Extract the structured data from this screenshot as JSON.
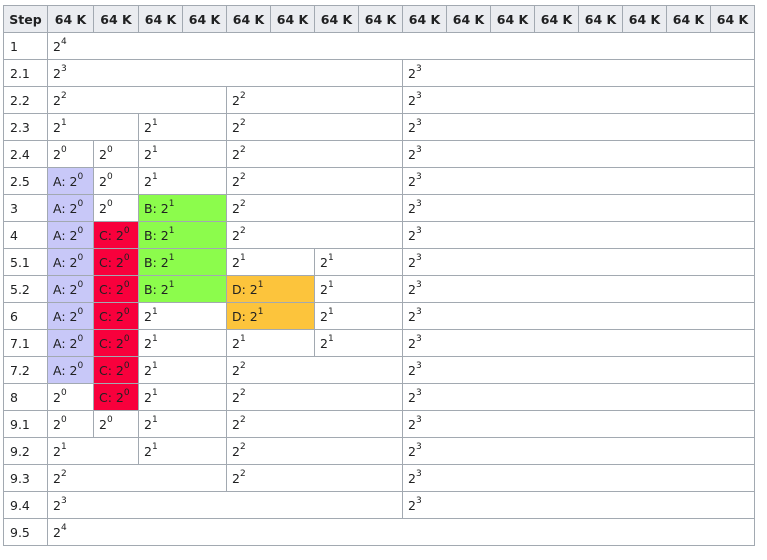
{
  "header": {
    "step": "Step",
    "block": "64 K",
    "count": 16
  },
  "colors": {
    "A": "#c8c8f8",
    "B": "#8cfc4c",
    "C": "#f8003c",
    "D": "#fcc43c"
  },
  "rows": [
    {
      "step": "1",
      "cells": [
        {
          "span": 16,
          "exp": "4"
        }
      ]
    },
    {
      "step": "2.1",
      "cells": [
        {
          "span": 8,
          "exp": "3"
        },
        {
          "span": 8,
          "exp": "3"
        }
      ]
    },
    {
      "step": "2.2",
      "cells": [
        {
          "span": 4,
          "exp": "2"
        },
        {
          "span": 4,
          "exp": "2"
        },
        {
          "span": 8,
          "exp": "3"
        }
      ]
    },
    {
      "step": "2.3",
      "cells": [
        {
          "span": 2,
          "exp": "1"
        },
        {
          "span": 2,
          "exp": "1"
        },
        {
          "span": 4,
          "exp": "2"
        },
        {
          "span": 8,
          "exp": "3"
        }
      ]
    },
    {
      "step": "2.4",
      "cells": [
        {
          "span": 1,
          "exp": "0"
        },
        {
          "span": 1,
          "exp": "0"
        },
        {
          "span": 2,
          "exp": "1"
        },
        {
          "span": 4,
          "exp": "2"
        },
        {
          "span": 8,
          "exp": "3"
        }
      ]
    },
    {
      "step": "2.5",
      "cells": [
        {
          "span": 1,
          "exp": "0",
          "label": "A"
        },
        {
          "span": 1,
          "exp": "0"
        },
        {
          "span": 2,
          "exp": "1"
        },
        {
          "span": 4,
          "exp": "2"
        },
        {
          "span": 8,
          "exp": "3"
        }
      ]
    },
    {
      "step": "3",
      "cells": [
        {
          "span": 1,
          "exp": "0",
          "label": "A"
        },
        {
          "span": 1,
          "exp": "0"
        },
        {
          "span": 2,
          "exp": "1",
          "label": "B"
        },
        {
          "span": 4,
          "exp": "2"
        },
        {
          "span": 8,
          "exp": "3"
        }
      ]
    },
    {
      "step": "4",
      "cells": [
        {
          "span": 1,
          "exp": "0",
          "label": "A"
        },
        {
          "span": 1,
          "exp": "0",
          "label": "C"
        },
        {
          "span": 2,
          "exp": "1",
          "label": "B"
        },
        {
          "span": 4,
          "exp": "2"
        },
        {
          "span": 8,
          "exp": "3"
        }
      ]
    },
    {
      "step": "5.1",
      "cells": [
        {
          "span": 1,
          "exp": "0",
          "label": "A"
        },
        {
          "span": 1,
          "exp": "0",
          "label": "C"
        },
        {
          "span": 2,
          "exp": "1",
          "label": "B"
        },
        {
          "span": 2,
          "exp": "1"
        },
        {
          "span": 2,
          "exp": "1"
        },
        {
          "span": 8,
          "exp": "3"
        }
      ]
    },
    {
      "step": "5.2",
      "cells": [
        {
          "span": 1,
          "exp": "0",
          "label": "A"
        },
        {
          "span": 1,
          "exp": "0",
          "label": "C"
        },
        {
          "span": 2,
          "exp": "1",
          "label": "B"
        },
        {
          "span": 2,
          "exp": "1",
          "label": "D"
        },
        {
          "span": 2,
          "exp": "1"
        },
        {
          "span": 8,
          "exp": "3"
        }
      ]
    },
    {
      "step": "6",
      "cells": [
        {
          "span": 1,
          "exp": "0",
          "label": "A"
        },
        {
          "span": 1,
          "exp": "0",
          "label": "C"
        },
        {
          "span": 2,
          "exp": "1"
        },
        {
          "span": 2,
          "exp": "1",
          "label": "D"
        },
        {
          "span": 2,
          "exp": "1"
        },
        {
          "span": 8,
          "exp": "3"
        }
      ]
    },
    {
      "step": "7.1",
      "cells": [
        {
          "span": 1,
          "exp": "0",
          "label": "A"
        },
        {
          "span": 1,
          "exp": "0",
          "label": "C"
        },
        {
          "span": 2,
          "exp": "1"
        },
        {
          "span": 2,
          "exp": "1"
        },
        {
          "span": 2,
          "exp": "1"
        },
        {
          "span": 8,
          "exp": "3"
        }
      ]
    },
    {
      "step": "7.2",
      "cells": [
        {
          "span": 1,
          "exp": "0",
          "label": "A"
        },
        {
          "span": 1,
          "exp": "0",
          "label": "C"
        },
        {
          "span": 2,
          "exp": "1"
        },
        {
          "span": 4,
          "exp": "2"
        },
        {
          "span": 8,
          "exp": "3"
        }
      ]
    },
    {
      "step": "8",
      "cells": [
        {
          "span": 1,
          "exp": "0"
        },
        {
          "span": 1,
          "exp": "0",
          "label": "C"
        },
        {
          "span": 2,
          "exp": "1"
        },
        {
          "span": 4,
          "exp": "2"
        },
        {
          "span": 8,
          "exp": "3"
        }
      ]
    },
    {
      "step": "9.1",
      "cells": [
        {
          "span": 1,
          "exp": "0"
        },
        {
          "span": 1,
          "exp": "0"
        },
        {
          "span": 2,
          "exp": "1"
        },
        {
          "span": 4,
          "exp": "2"
        },
        {
          "span": 8,
          "exp": "3"
        }
      ]
    },
    {
      "step": "9.2",
      "cells": [
        {
          "span": 2,
          "exp": "1"
        },
        {
          "span": 2,
          "exp": "1"
        },
        {
          "span": 4,
          "exp": "2"
        },
        {
          "span": 8,
          "exp": "3"
        }
      ]
    },
    {
      "step": "9.3",
      "cells": [
        {
          "span": 4,
          "exp": "2"
        },
        {
          "span": 4,
          "exp": "2"
        },
        {
          "span": 8,
          "exp": "3"
        }
      ]
    },
    {
      "step": "9.4",
      "cells": [
        {
          "span": 8,
          "exp": "3"
        },
        {
          "span": 8,
          "exp": "3"
        }
      ]
    },
    {
      "step": "9.5",
      "cells": [
        {
          "span": 16,
          "exp": "4"
        }
      ]
    }
  ]
}
